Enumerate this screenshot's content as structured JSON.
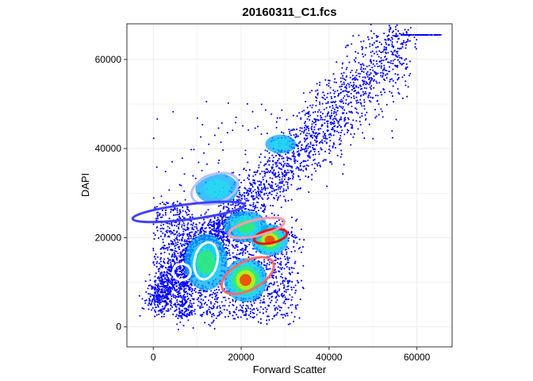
{
  "chart_data": {
    "type": "scatter",
    "title": "20160311_C1.fcs",
    "xlabel": "Forward Scatter",
    "ylabel": "DAPI",
    "xlim": [
      -6000,
      68000
    ],
    "ylim": [
      -4500,
      68000
    ],
    "xticks": [
      0,
      20000,
      40000,
      60000
    ],
    "xtick_labels": [
      "0",
      "20000",
      "40000",
      "60000"
    ],
    "yticks": [
      0,
      20000,
      40000,
      60000
    ],
    "ytick_labels": [
      "0",
      "20000",
      "40000",
      "60000"
    ],
    "grid": true,
    "legend": "none",
    "point_color": "#0000ff",
    "density_colormap": [
      "#0000ff",
      "#00aaff",
      "#22ddee",
      "#33ee66",
      "#ddee00",
      "#ff2200"
    ],
    "saturated_row": {
      "y": 65500,
      "x_range": [
        56000,
        65500
      ]
    },
    "density_regions": [
      {
        "cx": 21000,
        "cy": 10500,
        "sx": 3500,
        "sy": 3500,
        "level": 0.95
      },
      {
        "cx": 26500,
        "cy": 19500,
        "sx": 3000,
        "sy": 2500,
        "level": 0.95
      },
      {
        "cx": 21000,
        "cy": 22500,
        "sx": 3500,
        "sy": 2500,
        "level": 0.65
      },
      {
        "cx": 12000,
        "cy": 14500,
        "sx": 3500,
        "sy": 4500,
        "level": 0.55
      },
      {
        "cx": 14500,
        "cy": 31000,
        "sx": 3500,
        "sy": 2500,
        "level": 0.4
      },
      {
        "cx": 29000,
        "cy": 41000,
        "sx": 2500,
        "sy": 1500,
        "level": 0.4
      }
    ],
    "ellipses": [
      {
        "cx": 21500,
        "cy": 11500,
        "rx": 6500,
        "ry": 3200,
        "angle": -28,
        "color": "#ff6a6a"
      },
      {
        "cx": 26700,
        "cy": 20300,
        "rx": 3800,
        "ry": 1500,
        "angle": -12,
        "color": "#ee1111"
      },
      {
        "cx": 23500,
        "cy": 22200,
        "rx": 6500,
        "ry": 1800,
        "angle": -13,
        "color": "#ff9aaa"
      },
      {
        "cx": 12000,
        "cy": 14800,
        "rx": 2600,
        "ry": 4200,
        "angle": 12,
        "color": "#ffffff"
      },
      {
        "cx": 6500,
        "cy": 12300,
        "rx": 2000,
        "ry": 1800,
        "angle": 0,
        "color": "#ffffff"
      },
      {
        "cx": 14000,
        "cy": 31000,
        "rx": 5500,
        "ry": 3200,
        "angle": -20,
        "color": "#bbc0ff"
      },
      {
        "cx": 8000,
        "cy": 25800,
        "rx": 12800,
        "ry": 1700,
        "angle": -7,
        "color": "#4040ff"
      }
    ]
  }
}
